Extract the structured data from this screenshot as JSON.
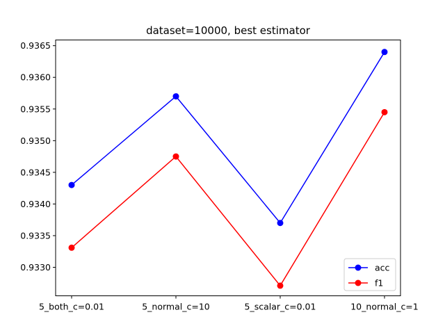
{
  "chart_data": {
    "type": "line",
    "title": "dataset=10000, best estimator",
    "xlabel": "",
    "ylabel": "",
    "categories": [
      "5_both_c=0.01",
      "5_normal_c=10",
      "5_scalar_c=0.01",
      "10_normal_c=1"
    ],
    "series": [
      {
        "name": "acc",
        "color": "#0000ff",
        "values": [
          0.9343,
          0.9357,
          0.9337,
          0.9364
        ]
      },
      {
        "name": "f1",
        "color": "#ff0000",
        "values": [
          0.93331,
          0.93475,
          0.93271,
          0.93545
        ]
      }
    ],
    "yticks": [
      "0.9330",
      "0.9335",
      "0.9340",
      "0.9345",
      "0.9350",
      "0.9355",
      "0.9360",
      "0.9365"
    ],
    "ylim": [
      0.93255,
      0.93659
    ],
    "grid": false,
    "legend_position": "lower-right",
    "marker": "circle"
  }
}
